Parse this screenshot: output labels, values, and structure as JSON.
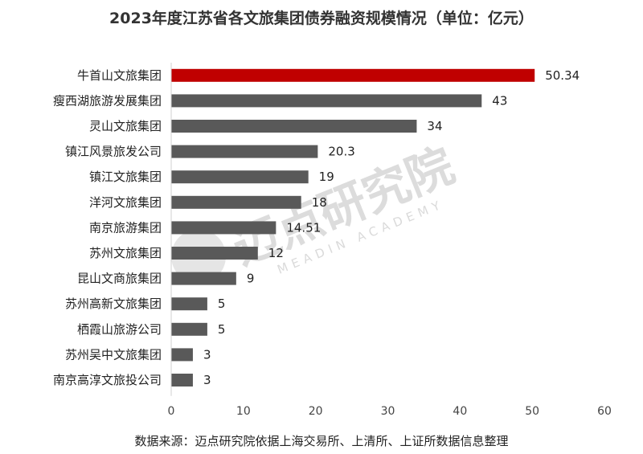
{
  "chart_data": {
    "type": "bar",
    "orientation": "horizontal",
    "title": "2023年度江苏省各文旅集团债券融资规模情况（单位：亿元）",
    "categories": [
      "牛首山文旅集团",
      "瘦西湖旅游发展集团",
      "灵山文旅集团",
      "镇江风景旅发公司",
      "镇江文旅集团",
      "洋河文旅集团",
      "南京旅游集团",
      "苏州文旅集团",
      "昆山文商旅集团",
      "苏州高新文旅集团",
      "栖霞山旅游公司",
      "苏州吴中文旅集团",
      "南京高淳文旅投公司"
    ],
    "values": [
      50.34,
      43,
      34,
      20.3,
      19,
      18,
      14.51,
      12,
      9,
      5,
      5,
      3,
      3
    ],
    "value_labels": [
      "50.34",
      "43",
      "34",
      "20.3",
      "19",
      "18",
      "14.51",
      "12",
      "9",
      "5",
      "5",
      "3",
      "3"
    ],
    "xlim": [
      0,
      60
    ],
    "xticks": [
      "0",
      "10",
      "20",
      "30",
      "40",
      "50",
      "60"
    ],
    "highlight_color": "#c00000",
    "bar_color": "#595959",
    "grid": false
  },
  "watermark": {
    "cn": "迈点研究院",
    "en": "MEADIN ACADEMY"
  },
  "source": "数据来源：迈点研究院依据上海交易所、上清所、上证所数据信息整理"
}
